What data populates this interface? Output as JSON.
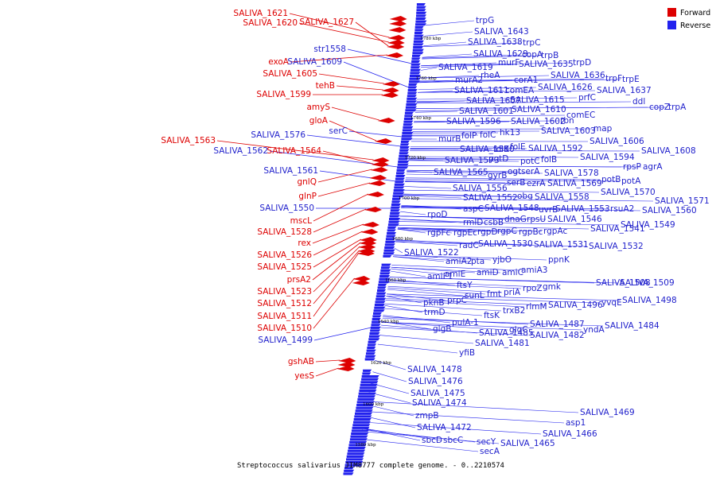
{
  "caption": "Streptococcus salivarius JIM8777 complete genome. - 0..2210574",
  "legend": [
    {
      "label": "Forward",
      "color": "#dd0000"
    },
    {
      "label": "Reverse",
      "color": "#2222ee"
    }
  ],
  "colors": {
    "forward": "#dd0000",
    "reverse": "#2222ee",
    "backbone": "#777777"
  },
  "ticks": [
    "1780 kbp",
    "1760 kbp",
    "1740 kbp",
    "1720 kbp",
    "1700 kbp",
    "1680 kbp",
    "1660 kbp",
    "1640 kbp",
    "1620 kbp",
    "1600 kbp",
    "1580 kbp"
  ],
  "forward_labels": [
    "SALIVA_1621",
    "SALIVA_1620",
    "SALIVA_1627",
    "exoA",
    "SALIVA_1605",
    "tehB",
    "SALIVA_1599",
    "amyS",
    "gloA",
    "SALIVA_1563",
    "SALIVA_1564",
    "gnlQ",
    "glnP",
    "mscL",
    "SALIVA_1528",
    "rex",
    "SALIVA_1526",
    "SALIVA_1525",
    "prsA2",
    "SALIVA_1523",
    "SALIVA_1512",
    "SALIVA_1511",
    "SALIVA_1510",
    "gshAB",
    "yesS"
  ],
  "reverse_left_labels": [
    "str1558",
    "SALIVA_1609",
    "serC",
    "SALIVA_1576",
    "SALIVA_1562",
    "SALIVA_1561",
    "SALIVA_1550",
    "SALIVA_1499"
  ],
  "reverse_right_labels": [
    "trpG",
    "SALIVA_1643",
    "SALIVA_1638",
    "trpC",
    "SALIVA_1629",
    "copA",
    "trpB",
    "murF",
    "SALIVA_1635",
    "trpD",
    "SALIVA_1619",
    "rheA",
    "SALIVA_1636",
    "trpF",
    "trpE",
    "murA2",
    "corA1",
    "SALIVA_1626",
    "SALIVA_1637",
    "SALIVA_1611",
    "comEA",
    "prfC",
    "ddl",
    "copZ",
    "trpA",
    "SALIVA_1607",
    "SALIVA_1615",
    "SALIVA_1610",
    "SALIVA_1601",
    "comEC",
    "SALIVA_1596",
    "SALIVA_1602",
    "rbn",
    "hk13",
    "SALIVA_1603",
    "map",
    "murB",
    "folP",
    "folC",
    "SALIVA_1606",
    "folE",
    "SALIVA_1592",
    "SALIVA_1608",
    "SALIVA_1580",
    "folK",
    "SALIVA_1594",
    "SALIVA_1573",
    "potD",
    "potC",
    "folB",
    "rpsP",
    "agrA",
    "SALIVA_1565",
    "gyrB",
    "ogt",
    "serA",
    "SALIVA_1578",
    "potB",
    "potA",
    "SALIVA_1556",
    "serB",
    "ezrA",
    "SALIVA_1569",
    "SALIVA_1570",
    "SALIVA_1552",
    "obg",
    "SALIVA_1558",
    "SALIVA_1571",
    "aspC",
    "SALIVA_1548",
    "uvrB",
    "SALIVA_1553",
    "rsuA2",
    "SALIVA_1560",
    "rpoD",
    "rmlD",
    "csbB",
    "dnaG",
    "rpsU",
    "SALIVA_1546",
    "SALIVA_1549",
    "SALIVA_1541",
    "rgpFc",
    "rgpEc",
    "rgpD",
    "rgpC",
    "rgpBc",
    "rgpAc",
    "radC",
    "SALIVA_1530",
    "SALIVA_1531",
    "SALIVA_1532",
    "SALIVA_1522",
    "amiA2",
    "pta",
    "yjbO",
    "ppnK",
    "amiE",
    "amiD",
    "amiC",
    "amiA3",
    "amiF1",
    "ftsY",
    "SALIVA_1508",
    "SALIVA_1509",
    "rpoZ",
    "gmk",
    "sunL",
    "fmt",
    "priA",
    "pknB",
    "prpC",
    "yvqE",
    "SALIVA_1498",
    "rlmM",
    "SALIVA_1496",
    "trmD",
    "trxB2",
    "ftsK",
    "pulA-1",
    "glgB",
    "SALIVA_1487",
    "glgC",
    "yndA",
    "SALIVA_1484",
    "SALIVA_1485",
    "SALIVA_1482",
    "SALIVA_1481",
    "yfiB",
    "SALIVA_1478",
    "SALIVA_1476",
    "SALIVA_1475",
    "SALIVA_1474",
    "zmpB",
    "SALIVA_1472",
    "SALIVA_1469",
    "asp1",
    "SALIVA_1466",
    "sbcD",
    "sbcC",
    "secY",
    "SALIVA_1465",
    "secA"
  ]
}
